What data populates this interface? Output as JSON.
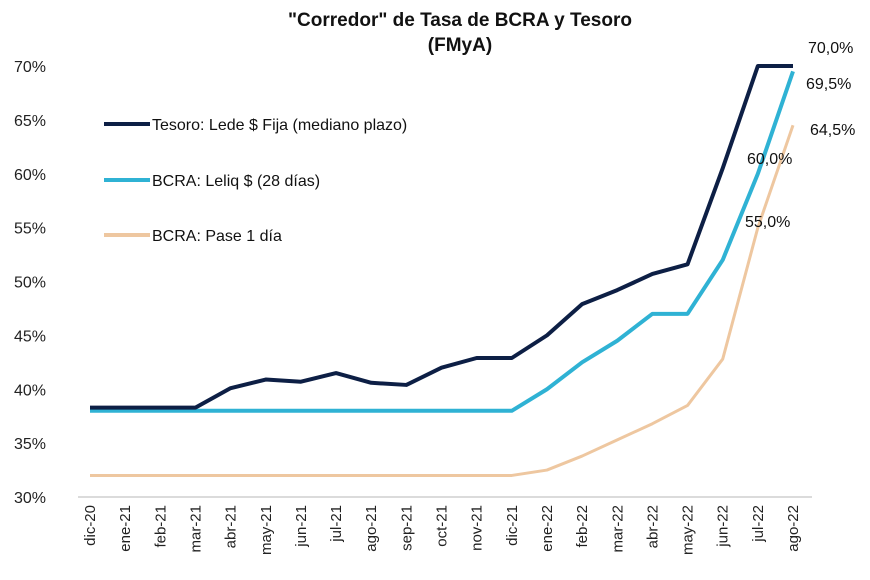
{
  "chart_data": {
    "type": "line",
    "title": "\"Corredor\" de Tasa de BCRA  y  Tesoro",
    "subtitle": "(FMyA)",
    "xlabel": "",
    "ylabel": "",
    "ylim": [
      30,
      70
    ],
    "yticks": [
      30,
      35,
      40,
      45,
      50,
      55,
      60,
      65,
      70
    ],
    "ytick_labels": [
      "30%",
      "35%",
      "40%",
      "45%",
      "50%",
      "55%",
      "60%",
      "65%",
      "70%"
    ],
    "grid": false,
    "legend_position": "top-left",
    "categories": [
      "dic-20",
      "ene-21",
      "feb-21",
      "mar-21",
      "abr-21",
      "may-21",
      "jun-21",
      "jul-21",
      "ago-21",
      "sep-21",
      "oct-21",
      "nov-21",
      "dic-21",
      "ene-22",
      "feb-22",
      "mar-22",
      "abr-22",
      "may-22",
      "jun-22",
      "jul-22",
      "ago-22"
    ],
    "series": [
      {
        "name": "Tesoro: Lede $ Fija (mediano plazo)",
        "color": "#0d1f45",
        "values": [
          38.3,
          38.3,
          38.3,
          38.3,
          40.1,
          40.9,
          40.7,
          41.5,
          40.6,
          40.4,
          42.0,
          42.9,
          42.9,
          45.0,
          47.9,
          49.2,
          50.7,
          51.6,
          60.5,
          70.0,
          70.0
        ]
      },
      {
        "name": "BCRA: Leliq $ (28 días)",
        "color": "#2fb2d4",
        "values": [
          38.0,
          38.0,
          38.0,
          38.0,
          38.0,
          38.0,
          38.0,
          38.0,
          38.0,
          38.0,
          38.0,
          38.0,
          38.0,
          40.0,
          42.5,
          44.5,
          47.0,
          47.0,
          52.0,
          60.0,
          69.5
        ]
      },
      {
        "name": "BCRA: Pase 1 día",
        "color": "#eec7a0",
        "values": [
          32.0,
          32.0,
          32.0,
          32.0,
          32.0,
          32.0,
          32.0,
          32.0,
          32.0,
          32.0,
          32.0,
          32.0,
          32.0,
          32.5,
          33.8,
          35.3,
          36.8,
          38.5,
          42.8,
          55.0,
          64.5
        ]
      }
    ],
    "annotations": [
      {
        "text": "70,0%",
        "series": 0,
        "category": "ago-22"
      },
      {
        "text": "69,5%",
        "series": 1,
        "category": "ago-22"
      },
      {
        "text": "64,5%",
        "series": 2,
        "category": "ago-22"
      },
      {
        "text": "60,0%",
        "series": 1,
        "category": "jul-22"
      },
      {
        "text": "55,0%",
        "series": 2,
        "category": "jul-22"
      }
    ]
  }
}
